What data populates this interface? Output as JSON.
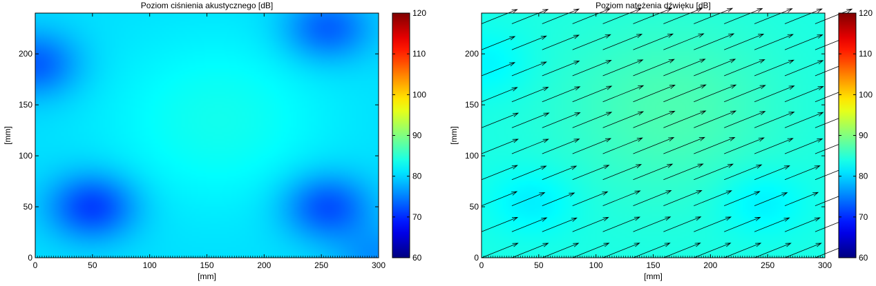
{
  "chart_data": [
    {
      "type": "heatmap",
      "title": "Poziom ciśnienia akustycznego [dB]",
      "xlabel": "[mm]",
      "ylabel": "[mm]",
      "xlim": [
        0,
        300
      ],
      "ylim": [
        0,
        240
      ],
      "xticks": [
        "0",
        "50",
        "100",
        "150",
        "200",
        "250",
        "300"
      ],
      "yticks": [
        "0",
        "50",
        "100",
        "150",
        "200"
      ],
      "colorbar": {
        "range": [
          60,
          120
        ],
        "ticks": [
          "60",
          "70",
          "80",
          "90",
          "100",
          "110",
          "120"
        ],
        "colormap": "jet"
      },
      "grid": false,
      "approximate_field": {
        "base_db": 80.5,
        "center_peak": {
          "x": 160,
          "y": 135,
          "db": 83.5
        },
        "minima": [
          {
            "x": 50,
            "y": 50,
            "db": 71
          },
          {
            "x": 255,
            "y": 50,
            "db": 72
          },
          {
            "x": 255,
            "y": 225,
            "db": 73
          },
          {
            "x": 0,
            "y": 190,
            "db": 73
          },
          {
            "x": 300,
            "y": 0,
            "db": 76
          }
        ]
      }
    },
    {
      "type": "heatmap",
      "title": "Poziom natężenia dźwięku [dB]",
      "xlabel": "[mm]",
      "ylabel": "[mm]",
      "xlim": [
        0,
        300
      ],
      "ylim": [
        0,
        240
      ],
      "xticks": [
        "0",
        "50",
        "100",
        "150",
        "200",
        "250",
        "300"
      ],
      "yticks": [
        "0",
        "50",
        "100",
        "150",
        "200"
      ],
      "colorbar": {
        "range": [
          60,
          120
        ],
        "ticks": [
          "60",
          "70",
          "80",
          "90",
          "100",
          "110",
          "120"
        ],
        "colormap": "jet"
      },
      "grid": false,
      "approximate_field": {
        "base_db": 84,
        "center_peak": {
          "x": 165,
          "y": 145,
          "db": 87
        },
        "minima": [
          {
            "x": 45,
            "y": 55,
            "db": 81.5
          },
          {
            "x": 245,
            "y": 55,
            "db": 81.5
          },
          {
            "x": 5,
            "y": 190,
            "db": 82
          }
        ]
      },
      "vector_field": {
        "type": "quiver",
        "x_start": 0,
        "x_step": 26.5,
        "nx": 12,
        "y_start": 0,
        "y_step": 25.5,
        "ny": 10,
        "direction": {
          "dx": 1.0,
          "dy": 0.45
        },
        "approx_length": 20
      }
    }
  ]
}
